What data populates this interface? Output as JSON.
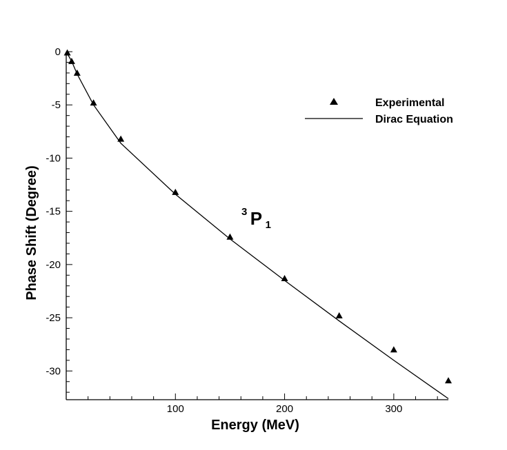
{
  "chart_data": {
    "type": "line",
    "title": "",
    "xlabel": "Energy (MeV)",
    "ylabel": "Phase Shift (Degree)",
    "xlim": [
      0,
      350
    ],
    "ylim": [
      -32.7,
      0
    ],
    "x_ticks": [
      100,
      200,
      300
    ],
    "x_tick_labels": [
      "100",
      "200",
      "300"
    ],
    "y_ticks": [
      0,
      -5,
      -10,
      -15,
      -20,
      -25,
      -30
    ],
    "y_tick_labels": [
      "0",
      "-5",
      "-10",
      "-15",
      "-20",
      "-25",
      "-30"
    ],
    "grid": false,
    "legend_position": "top-right",
    "annotation": {
      "main": "P",
      "superscript": "3",
      "subscript": "1"
    },
    "series": [
      {
        "name": "Experimental",
        "kind": "scatter",
        "marker": "triangle",
        "color": "#000000",
        "x": [
          1,
          5,
          10,
          25,
          50,
          100,
          150,
          200,
          250,
          300,
          350
        ],
        "y": [
          -0.1,
          -0.9,
          -2.0,
          -4.8,
          -8.2,
          -13.2,
          -17.4,
          -21.3,
          -24.8,
          -28.0,
          -30.9
        ]
      },
      {
        "name": "Dirac Equation",
        "kind": "line",
        "color": "#000000",
        "x": [
          0,
          5,
          10,
          25,
          50,
          100,
          150,
          200,
          250,
          300,
          350
        ],
        "y": [
          0,
          -0.9,
          -2.1,
          -5.0,
          -8.6,
          -13.4,
          -17.6,
          -21.5,
          -25.3,
          -29.0,
          -32.6
        ]
      }
    ]
  }
}
